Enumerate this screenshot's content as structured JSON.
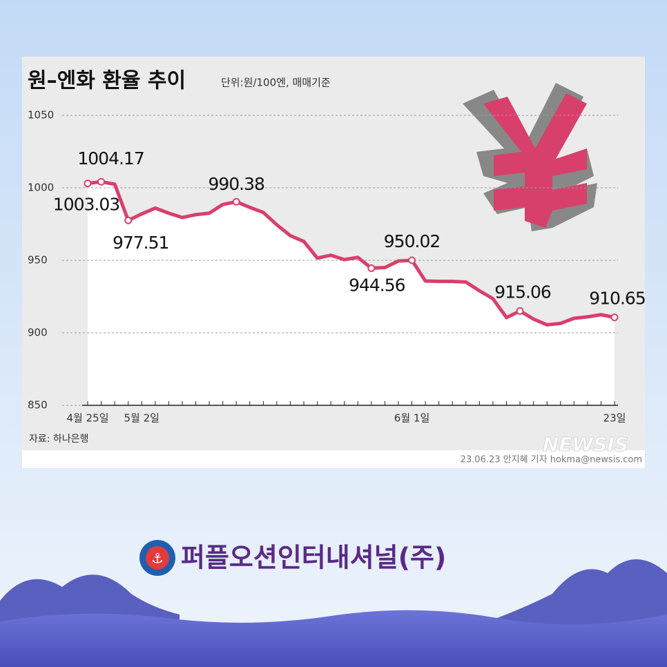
{
  "chart_data": {
    "type": "line",
    "title": "원–엔화 환율 추이",
    "subtitle": "단위:원/100엔, 매매기준",
    "source": "자료: 하나은행",
    "credit": "23.06.23 안지혜 기자 hokma@newsis.com",
    "watermark": "NEWSIS",
    "categories": [
      "4월 25일",
      null,
      null,
      null,
      "5월 2일",
      null,
      null,
      null,
      null,
      null,
      null,
      null,
      null,
      null,
      null,
      null,
      null,
      null,
      null,
      null,
      null,
      null,
      null,
      null,
      "6월 1일",
      null,
      null,
      null,
      null,
      null,
      null,
      null,
      null,
      null,
      null,
      null,
      null,
      null,
      null,
      "23일"
    ],
    "values": [
      1003.03,
      1004.17,
      1002.5,
      977.51,
      982,
      986,
      982.5,
      979.5,
      981.5,
      982.5,
      988.5,
      990.38,
      986.5,
      983,
      974.5,
      967,
      963,
      951.5,
      953.5,
      950.5,
      952,
      944.56,
      945,
      949.5,
      950.02,
      935.7,
      935.5,
      935.5,
      935,
      929,
      923.5,
      910.5,
      915.06,
      909.5,
      905.5,
      906.5,
      910,
      911,
      912.5,
      910.65
    ],
    "value_labels": [
      "1003.03",
      "1004.17",
      null,
      "977.51",
      null,
      null,
      null,
      null,
      null,
      null,
      null,
      "990.38",
      null,
      null,
      null,
      null,
      null,
      null,
      null,
      null,
      null,
      "944.56",
      null,
      null,
      "950.02",
      null,
      null,
      null,
      null,
      null,
      null,
      null,
      "915.06",
      null,
      null,
      null,
      null,
      null,
      null,
      "910.65"
    ],
    "color": "#d8406c",
    "ylim": [
      850,
      1050
    ],
    "yticks": [
      850,
      900,
      950,
      1000,
      1050
    ],
    "grid": true
  },
  "footer": {
    "company": "퍼플오션인터내셔널(주)"
  }
}
